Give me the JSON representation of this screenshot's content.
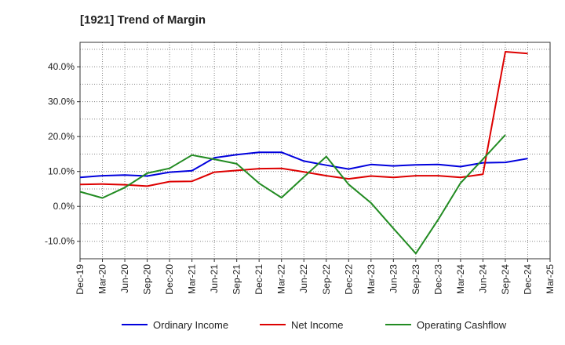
{
  "chart_data": {
    "type": "line",
    "title": "[1921]  Trend of Margin",
    "xlabel": "",
    "ylabel": "",
    "categories": [
      "Dec-19",
      "Mar-20",
      "Jun-20",
      "Sep-20",
      "Dec-20",
      "Mar-21",
      "Jun-21",
      "Sep-21",
      "Dec-21",
      "Mar-22",
      "Jun-22",
      "Sep-22",
      "Dec-22",
      "Mar-23",
      "Jun-23",
      "Sep-23",
      "Dec-23",
      "Mar-24",
      "Jun-24",
      "Sep-24",
      "Dec-24",
      "Mar-25"
    ],
    "y_ticks": [
      {
        "value": 40,
        "label": "40.0%"
      },
      {
        "value": 30,
        "label": "30.0%"
      },
      {
        "value": 20,
        "label": "20.0%"
      },
      {
        "value": 10,
        "label": "10.0%"
      },
      {
        "value": 0,
        "label": "0.0%"
      },
      {
        "value": -10,
        "label": "-10.0%"
      }
    ],
    "ylim": [
      -15,
      47
    ],
    "grid": true,
    "legend_position": "bottom",
    "series": [
      {
        "name": "Ordinary Income",
        "color": "#0000dd",
        "values": [
          8.3,
          8.8,
          9.0,
          8.7,
          9.8,
          10.2,
          13.9,
          14.8,
          15.5,
          15.5,
          13.0,
          11.8,
          10.7,
          12.0,
          11.6,
          11.9,
          12.0,
          11.4,
          12.5,
          12.6,
          13.7,
          null
        ]
      },
      {
        "name": "Net Income",
        "color": "#dd0000",
        "values": [
          6.3,
          6.4,
          6.2,
          5.8,
          7.1,
          7.2,
          9.8,
          10.3,
          10.8,
          10.9,
          9.9,
          8.8,
          7.9,
          8.7,
          8.3,
          8.8,
          8.8,
          8.3,
          9.2,
          44.3,
          43.8,
          null
        ]
      },
      {
        "name": "Operating Cashflow",
        "color": "#228b22",
        "values": [
          4.2,
          2.4,
          5.4,
          9.5,
          10.9,
          14.7,
          13.5,
          12.2,
          6.6,
          2.5,
          8.4,
          14.3,
          6.3,
          1.0,
          -6.3,
          -13.5,
          -3.8,
          6.7,
          13.5,
          20.5,
          null,
          null
        ]
      }
    ]
  }
}
